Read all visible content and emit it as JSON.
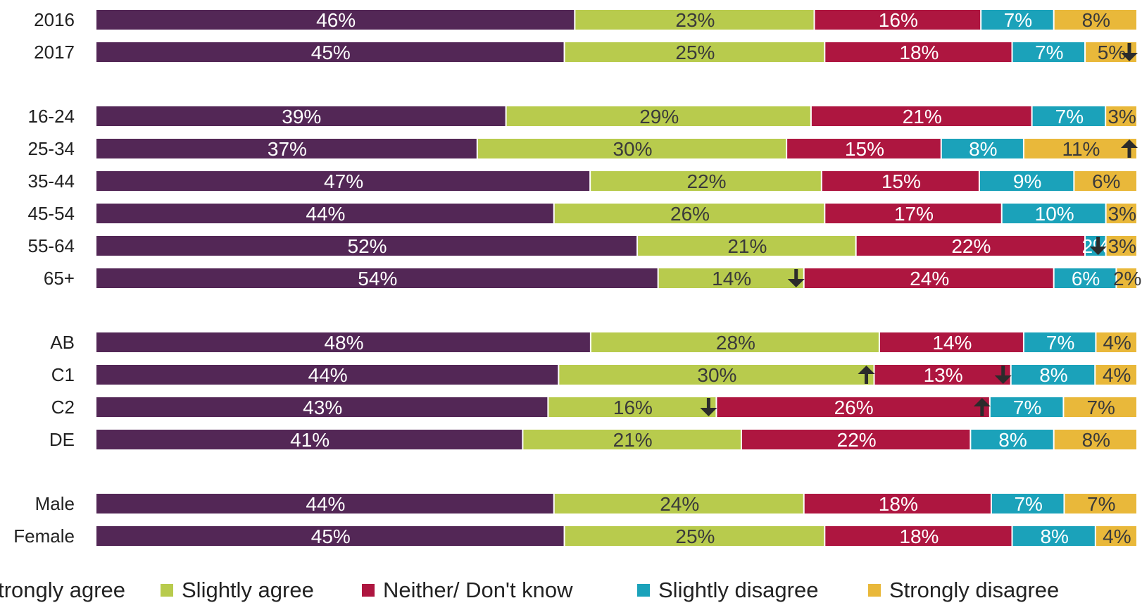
{
  "chart_data": {
    "type": "bar",
    "orientation": "horizontal",
    "stacked": true,
    "normalized": true,
    "categories": [
      "2016",
      "2017",
      "16-24",
      "25-34",
      "35-44",
      "45-54",
      "55-64",
      "65+",
      "AB",
      "C1",
      "C2",
      "DE",
      "Male",
      "Female"
    ],
    "groups": [
      [
        "2016",
        "2017"
      ],
      [
        "16-24",
        "25-34",
        "35-44",
        "45-54",
        "55-64",
        "65+"
      ],
      [
        "AB",
        "C1",
        "C2",
        "DE"
      ],
      [
        "Male",
        "Female"
      ]
    ],
    "series": [
      {
        "name": "Strongly agree",
        "color": "#532756",
        "values": [
          46,
          45,
          39,
          37,
          47,
          44,
          52,
          54,
          48,
          44,
          43,
          41,
          44,
          45
        ],
        "labels": [
          "46%",
          "45%",
          "39%",
          "37%",
          "47%",
          "44%",
          "52%",
          "54%",
          "48%",
          "44%",
          "43%",
          "41%",
          "44%",
          "45%"
        ]
      },
      {
        "name": "Slightly agree",
        "color": "#b8cb4d",
        "values": [
          23,
          25,
          29,
          30,
          22,
          26,
          21,
          14,
          28,
          30,
          16,
          21,
          24,
          25
        ],
        "labels": [
          "23%",
          "25%",
          "29%",
          "30%",
          "22%",
          "26%",
          "21%",
          "14%",
          "28%",
          "30%",
          "16%",
          "21%",
          "24%",
          "25%"
        ]
      },
      {
        "name": "Neither/ Don't know",
        "color": "#ae1640",
        "values": [
          16,
          18,
          21,
          15,
          15,
          17,
          22,
          24,
          14,
          13,
          26,
          22,
          18,
          18
        ],
        "labels": [
          "16%",
          "18%",
          "21%",
          "15%",
          "15%",
          "17%",
          "22%",
          "24%",
          "14%",
          "13%",
          "26%",
          "22%",
          "18%",
          "18%"
        ]
      },
      {
        "name": "Slightly disagree",
        "color": "#1ba2ba",
        "values": [
          7,
          7,
          7,
          8,
          9,
          10,
          2,
          6,
          7,
          8,
          7,
          8,
          7,
          8
        ],
        "labels": [
          "7%",
          "7%",
          "7%",
          "8%",
          "9%",
          "10%",
          "2%",
          "6%",
          "7%",
          "8%",
          "7%",
          "8%",
          "7%",
          "8%"
        ]
      },
      {
        "name": "Strongly disagree",
        "color": "#e9b83a",
        "values": [
          8,
          5,
          3,
          11,
          6,
          3,
          3,
          2,
          4,
          4,
          7,
          8,
          7,
          4
        ],
        "labels": [
          "8%",
          "5%",
          "3%",
          "11%",
          "6%",
          "3%",
          "3%",
          "2%",
          "4%",
          "4%",
          "7%",
          "8%",
          "7%",
          "4%"
        ]
      }
    ],
    "significance_markers": [
      {
        "category": "2017",
        "series": "Strongly disagree",
        "direction": "down"
      },
      {
        "category": "25-34",
        "series": "Strongly disagree",
        "direction": "up"
      },
      {
        "category": "55-64",
        "series": "Slightly disagree",
        "direction": "down"
      },
      {
        "category": "65+",
        "series": "Slightly agree",
        "direction": "down"
      },
      {
        "category": "C1",
        "series": "Slightly agree",
        "direction": "up"
      },
      {
        "category": "C1",
        "series": "Neither/ Don't know",
        "direction": "down"
      },
      {
        "category": "C2",
        "series": "Slightly agree",
        "direction": "down"
      },
      {
        "category": "C2",
        "series": "Neither/ Don't know",
        "direction": "up"
      }
    ],
    "legend_position": "bottom",
    "grid": false,
    "xlim": [
      0,
      100
    ],
    "title": "",
    "xlabel": "",
    "ylabel": ""
  }
}
